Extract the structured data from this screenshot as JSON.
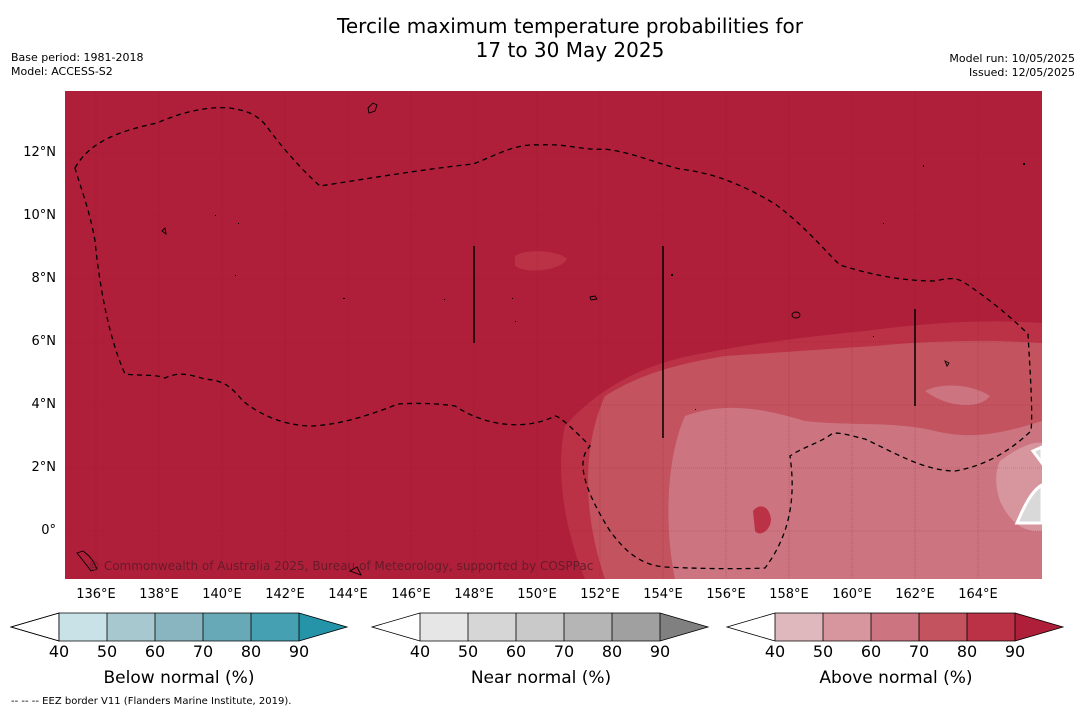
{
  "title_line1": "Tercile maximum temperature probabilities for",
  "title_line2": "17 to 30 May 2025",
  "base_period": "Base period: 1981-2018",
  "model": "Model: ACCESS-S2",
  "model_run": "Model run: 10/05/2025",
  "issued": "Issued: 12/05/2025",
  "credit": "© Commonwealth of Australia 2025, Bureau of Meteorology, supported by COSPPac",
  "footnote": "--  --  -- EEZ border V11 (Flanders Marine Institute, 2019).",
  "lat_labels": [
    "12°N",
    "10°N",
    "8°N",
    "6°N",
    "4°N",
    "2°N",
    "0°"
  ],
  "lon_labels": [
    "136°E",
    "138°E",
    "140°E",
    "142°E",
    "144°E",
    "146°E",
    "148°E",
    "150°E",
    "152°E",
    "154°E",
    "156°E",
    "158°E",
    "160°E",
    "162°E",
    "164°E"
  ],
  "legends": [
    {
      "title": "Below normal (%)",
      "ticks": [
        "40",
        "50",
        "60",
        "70",
        "80",
        "90"
      ],
      "colors": [
        "#ffffff",
        "#c9e2e8",
        "#a8c8cf",
        "#89b5c0",
        "#68a9b8",
        "#45a0b2",
        "#2593a8"
      ]
    },
    {
      "title": "Near normal (%)",
      "ticks": [
        "40",
        "50",
        "60",
        "70",
        "80",
        "90"
      ],
      "colors": [
        "#ffffff",
        "#e6e6e6",
        "#d6d6d6",
        "#c9c9c9",
        "#b5b5b5",
        "#a0a0a0",
        "#808080"
      ]
    },
    {
      "title": "Above normal (%)",
      "ticks": [
        "40",
        "50",
        "60",
        "70",
        "80",
        "90"
      ],
      "colors": [
        "#ffffff",
        "#dfb8be",
        "#d7969e",
        "#cc7580",
        "#c3535f",
        "#bb3247",
        "#b01f3a"
      ]
    }
  ]
}
